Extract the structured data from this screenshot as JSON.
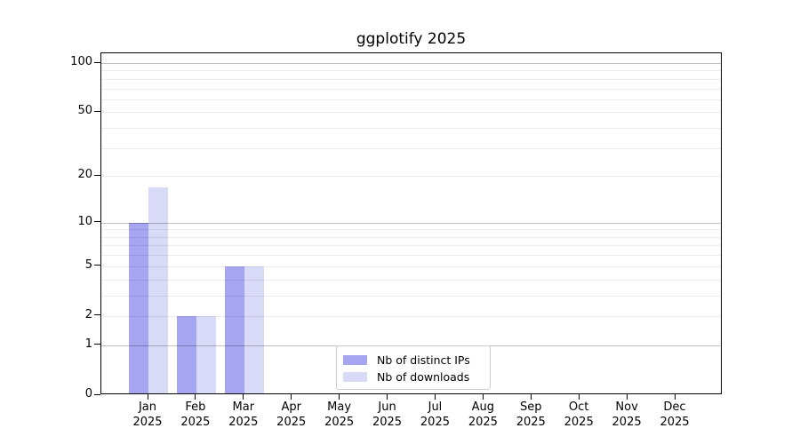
{
  "chart_data": {
    "type": "bar",
    "title": "ggplotify 2025",
    "categories": [
      "Jan",
      "Feb",
      "Mar",
      "Apr",
      "May",
      "Jun",
      "Jul",
      "Aug",
      "Sep",
      "Oct",
      "Nov",
      "Dec"
    ],
    "category_year": "2025",
    "series": [
      {
        "name": "Nb of distinct IPs",
        "color": "#a5a5f2",
        "values": [
          10,
          2,
          5,
          0,
          0,
          0,
          0,
          0,
          0,
          0,
          0,
          0
        ]
      },
      {
        "name": "Nb of downloads",
        "color": "#d9d9f8",
        "values": [
          17,
          2,
          5,
          0,
          0,
          0,
          0,
          0,
          0,
          0,
          0,
          0
        ]
      }
    ],
    "yscale": "log1p",
    "ylim": [
      0,
      115
    ],
    "yticks": [
      0,
      1,
      2,
      5,
      10,
      20,
      50,
      100
    ],
    "major_gridlines": [
      1,
      10,
      100
    ],
    "minor_gridlines": [
      2,
      3,
      4,
      5,
      6,
      7,
      8,
      9,
      20,
      30,
      40,
      50,
      60,
      70,
      80,
      90
    ],
    "grid": true,
    "xlabel": "",
    "ylabel": "",
    "legend_position": "lower center inside"
  }
}
